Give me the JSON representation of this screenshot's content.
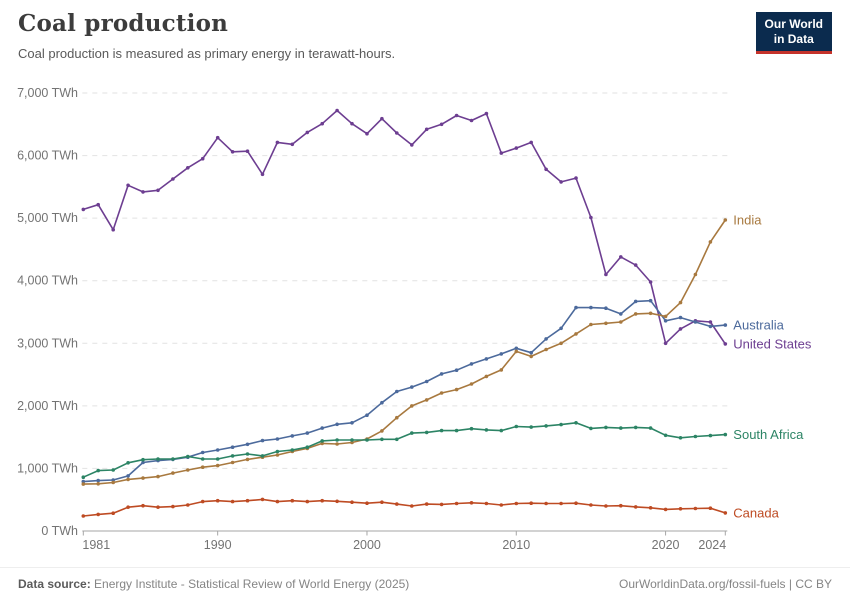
{
  "header": {
    "title": "Coal production",
    "subtitle": "Coal production is measured as primary energy in terawatt-hours.",
    "logo": {
      "line1": "Our World",
      "line2": "in Data"
    }
  },
  "footer": {
    "datasource_label": "Data source:",
    "datasource": " Energy Institute - Statistical Review of World Energy (2025)",
    "link": "OurWorldinData.org/fossil-fuels",
    "separator": " | ",
    "license": "CC BY"
  },
  "colors": {
    "background": "#ffffff",
    "grid": "#e2e2e2",
    "axis": "#a6a6a6",
    "tick_text": "#737373",
    "title": "#3c3c3c",
    "subtitle": "#595959",
    "logo_bg": "#0b2b4e",
    "logo_accent": "#c5332b"
  },
  "chart_data": {
    "type": "line",
    "title": "Coal production",
    "subtitle": "Coal production is measured as primary energy in terawatt-hours.",
    "unit": "TWh",
    "grid": "horizontal-dashed",
    "legend_position": "right-end-labels",
    "xlim": [
      1981,
      2024
    ],
    "ylim": [
      0,
      7000
    ],
    "xticks": [
      1981,
      1990,
      2000,
      2010,
      2020,
      2024
    ],
    "yticks": [
      0,
      1000,
      2000,
      3000,
      4000,
      5000,
      6000,
      7000
    ],
    "ytick_labels": [
      "0 TWh",
      "1,000 TWh",
      "2,000 TWh",
      "3,000 TWh",
      "4,000 TWh",
      "5,000 TWh",
      "6,000 TWh",
      "7,000 TWh"
    ],
    "x": [
      1981,
      1982,
      1983,
      1984,
      1985,
      1986,
      1987,
      1988,
      1989,
      1990,
      1991,
      1992,
      1993,
      1994,
      1995,
      1996,
      1997,
      1998,
      1999,
      2000,
      2001,
      2002,
      2003,
      2004,
      2005,
      2006,
      2007,
      2008,
      2009,
      2010,
      2011,
      2012,
      2013,
      2014,
      2015,
      2016,
      2017,
      2018,
      2019,
      2020,
      2021,
      2022,
      2023,
      2024
    ],
    "series": [
      {
        "name": "United States",
        "color": "#6d3e91",
        "values": [
          5140,
          5215,
          4815,
          5525,
          5420,
          5445,
          5625,
          5805,
          5950,
          6285,
          6060,
          6070,
          5700,
          6210,
          6180,
          6370,
          6510,
          6720,
          6510,
          6350,
          6590,
          6360,
          6170,
          6420,
          6500,
          6640,
          6560,
          6670,
          6040,
          6120,
          6210,
          5780,
          5580,
          5640,
          5010,
          4100,
          4380,
          4250,
          3980,
          3000,
          3230,
          3360,
          3340,
          2990
        ]
      },
      {
        "name": "Australia",
        "color": "#4c6a9c",
        "values": [
          790,
          805,
          815,
          880,
          1095,
          1125,
          1145,
          1180,
          1255,
          1295,
          1340,
          1385,
          1445,
          1470,
          1520,
          1565,
          1645,
          1705,
          1730,
          1850,
          2050,
          2230,
          2300,
          2390,
          2510,
          2570,
          2670,
          2750,
          2830,
          2920,
          2850,
          3070,
          3240,
          3570,
          3570,
          3560,
          3470,
          3670,
          3680,
          3360,
          3410,
          3340,
          3270,
          3290
        ]
      },
      {
        "name": "India",
        "color": "#a8793f",
        "values": [
          750,
          755,
          775,
          825,
          845,
          870,
          925,
          975,
          1020,
          1045,
          1095,
          1145,
          1180,
          1215,
          1270,
          1320,
          1400,
          1390,
          1415,
          1470,
          1600,
          1810,
          2000,
          2095,
          2205,
          2260,
          2350,
          2470,
          2575,
          2870,
          2790,
          2900,
          3000,
          3150,
          3300,
          3320,
          3340,
          3470,
          3480,
          3430,
          3650,
          4100,
          4620,
          4970
        ]
      },
      {
        "name": "South Africa",
        "color": "#2c8465",
        "values": [
          860,
          965,
          975,
          1090,
          1140,
          1150,
          1150,
          1190,
          1150,
          1150,
          1200,
          1230,
          1200,
          1270,
          1295,
          1340,
          1440,
          1455,
          1455,
          1455,
          1465,
          1465,
          1565,
          1575,
          1605,
          1605,
          1635,
          1615,
          1605,
          1670,
          1660,
          1680,
          1700,
          1730,
          1640,
          1655,
          1645,
          1655,
          1645,
          1530,
          1490,
          1510,
          1525,
          1540
        ]
      },
      {
        "name": "Canada",
        "color": "#be4b23",
        "values": [
          240,
          265,
          285,
          380,
          405,
          380,
          390,
          415,
          470,
          485,
          470,
          485,
          505,
          470,
          485,
          470,
          485,
          475,
          460,
          445,
          460,
          430,
          400,
          430,
          425,
          440,
          450,
          440,
          415,
          440,
          445,
          440,
          440,
          445,
          415,
          400,
          405,
          385,
          370,
          345,
          355,
          360,
          365,
          290
        ]
      }
    ]
  }
}
